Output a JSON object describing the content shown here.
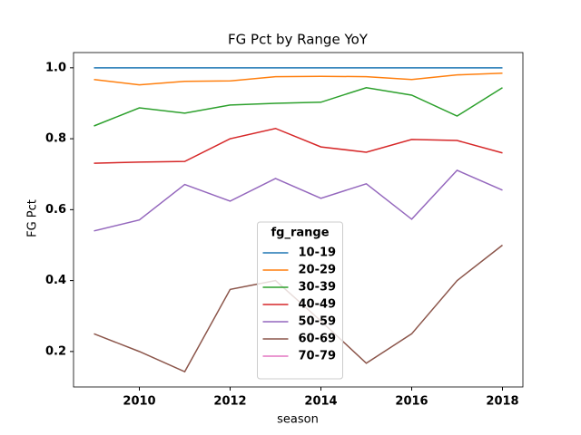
{
  "chart_data": {
    "type": "line",
    "title": "FG Pct by Range YoY",
    "x_label": "season",
    "y_label": "FG Pct",
    "x": [
      2009,
      2010,
      2011,
      2012,
      2013,
      2014,
      2015,
      2016,
      2017,
      2018
    ],
    "series": [
      {
        "name": "10-19",
        "color": "#1f77b4",
        "values": [
          1.0,
          1.0,
          1.0,
          1.0,
          1.0,
          1.0,
          1.0,
          1.0,
          1.0,
          1.0
        ]
      },
      {
        "name": "20-29",
        "color": "#ff7f0e",
        "values": [
          0.967,
          0.952,
          0.962,
          0.963,
          0.975,
          0.976,
          0.975,
          0.967,
          0.98,
          0.985
        ]
      },
      {
        "name": "30-39",
        "color": "#2ca02c",
        "values": [
          0.836,
          0.887,
          0.872,
          0.895,
          0.9,
          0.903,
          0.944,
          0.923,
          0.864,
          0.944
        ]
      },
      {
        "name": "40-49",
        "color": "#d62728",
        "values": [
          0.731,
          0.734,
          0.736,
          0.8,
          0.829,
          0.777,
          0.762,
          0.798,
          0.795,
          0.76
        ]
      },
      {
        "name": "50-59",
        "color": "#9467bd",
        "values": [
          0.54,
          0.571,
          0.671,
          0.624,
          0.688,
          0.632,
          0.673,
          0.573,
          0.711,
          0.655
        ]
      },
      {
        "name": "60-69",
        "color": "#8c564b",
        "values": [
          0.25,
          0.2,
          0.143,
          0.375,
          0.4,
          0.286,
          0.167,
          0.25,
          0.4,
          0.5
        ]
      },
      {
        "name": "70-79",
        "color": "#e377c2",
        "values": [
          null,
          null,
          null,
          null,
          null,
          null,
          null,
          null,
          null,
          null
        ]
      }
    ],
    "legend_title": "fg_range",
    "legend_loc": "lower center",
    "xlim": [
      2008.55,
      2018.45
    ],
    "xticks": [
      2010,
      2012,
      2014,
      2016,
      2018
    ],
    "ylim": [
      0.1,
      1.043
    ],
    "yticks": [
      0.2,
      0.4,
      0.6,
      0.8,
      {
        "value": 1.0,
        "label": "1.0"
      }
    ]
  }
}
